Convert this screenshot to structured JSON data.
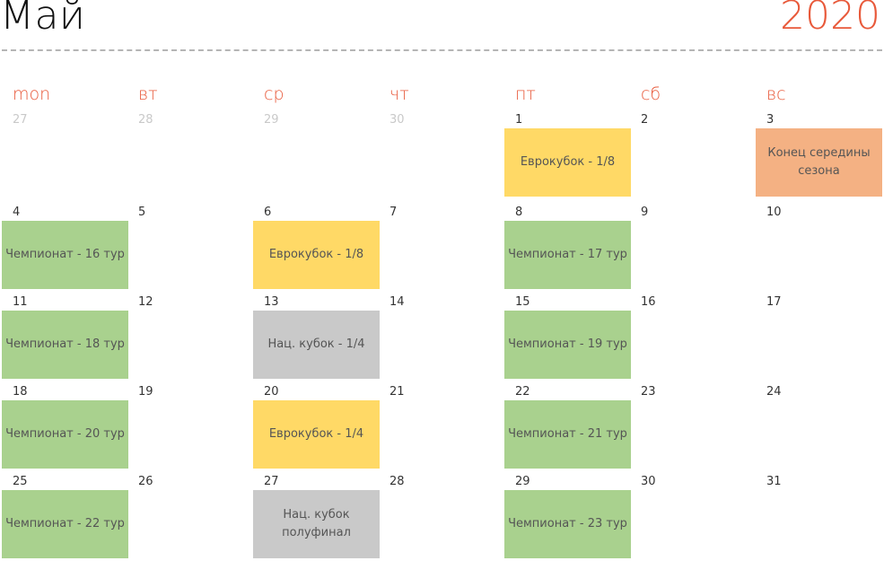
{
  "header": {
    "month": "Май",
    "year": "2020"
  },
  "weekdays": [
    "mon",
    "вт",
    "ср",
    "чт",
    "пт",
    "сб",
    "вс"
  ],
  "weeks": [
    [
      "27",
      "28",
      "29",
      "30",
      "1",
      "2",
      "3"
    ],
    [
      "4",
      "5",
      "6",
      "7",
      "8",
      "9",
      "10"
    ],
    [
      "11",
      "12",
      "13",
      "14",
      "15",
      "16",
      "17"
    ],
    [
      "18",
      "19",
      "20",
      "21",
      "22",
      "23",
      "24"
    ],
    [
      "25",
      "26",
      "27",
      "28",
      "29",
      "30",
      "31"
    ]
  ],
  "events": {
    "w0_fri": "Еврокубок - 1/8",
    "w0_sun": "Конец середины сезона",
    "w1_mon": "Чемпионат - 16 тур",
    "w1_wed": "Еврокубок - 1/8",
    "w1_fri": "Чемпионат - 17 тур",
    "w2_mon": "Чемпионат - 18 тур",
    "w2_wed": "Нац. кубок - 1/4",
    "w2_fri": "Чемпионат - 19 тур",
    "w3_mon": "Чемпионат - 20 тур",
    "w3_wed": "Еврокубок - 1/4",
    "w3_fri": "Чемпионат - 21 тур",
    "w4_mon": "Чемпионат - 22 тур",
    "w4_wed": "Нац. кубок\nполуфинал",
    "w4_fri": "Чемпионат - 23 тур"
  },
  "colors": {
    "accent": "#e8593a",
    "championship": "#a9d18e",
    "eurocup": "#ffd966",
    "national_cup": "#c9c9c9",
    "season_end": "#f4b183"
  }
}
